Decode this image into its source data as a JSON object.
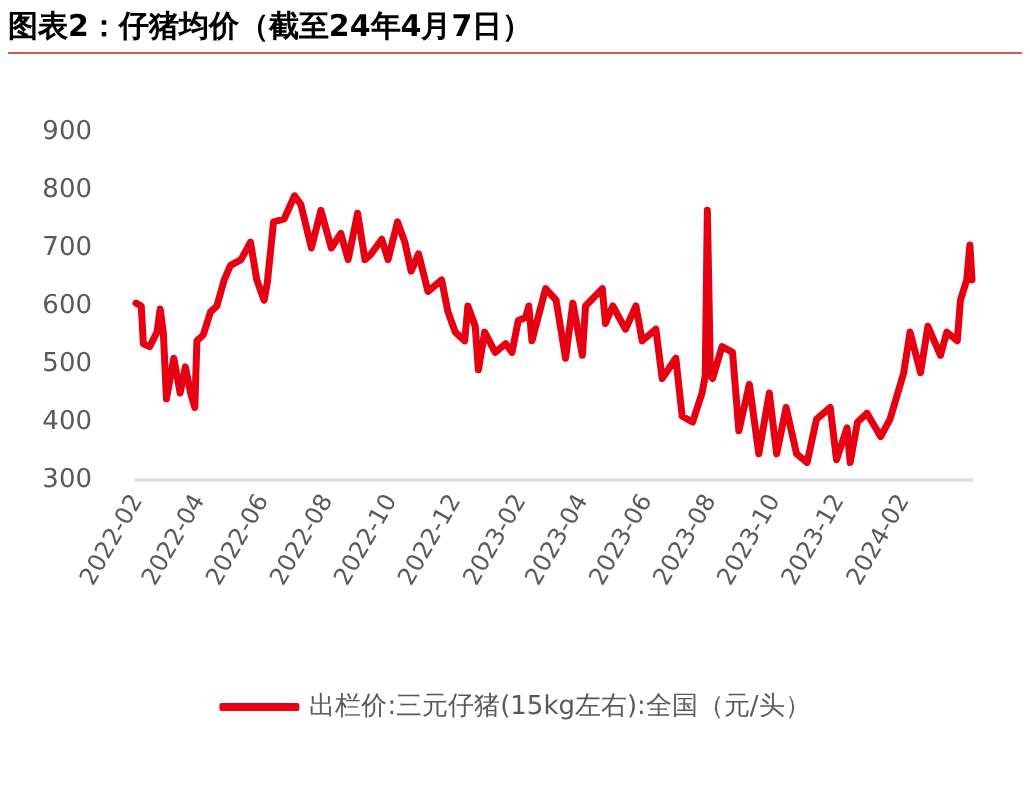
{
  "chart_data": {
    "type": "line",
    "title": "图表2：仔猪均价（截至24年4月7日）",
    "x": [
      "2022-02-01",
      "2022-02-06",
      "2022-02-08",
      "2022-02-14",
      "2022-02-21",
      "2022-02-24",
      "2022-02-27",
      "2022-03-02",
      "2022-03-09",
      "2022-03-15",
      "2022-03-20",
      "2022-03-25",
      "2022-03-29",
      "2022-03-31",
      "2022-04-06",
      "2022-04-13",
      "2022-04-19",
      "2022-04-26",
      "2022-05-02",
      "2022-05-12",
      "2022-05-21",
      "2022-05-27",
      "2022-06-03",
      "2022-06-06",
      "2022-06-12",
      "2022-06-22",
      "2022-07-02",
      "2022-07-08",
      "2022-07-18",
      "2022-07-27",
      "2022-08-06",
      "2022-08-15",
      "2022-08-22",
      "2022-08-31",
      "2022-09-07",
      "2022-09-13",
      "2022-09-23",
      "2022-09-29",
      "2022-10-08",
      "2022-10-15",
      "2022-10-21",
      "2022-10-28",
      "2022-11-06",
      "2022-11-19",
      "2022-11-25",
      "2022-12-02",
      "2022-12-11",
      "2022-12-14",
      "2022-12-21",
      "2022-12-24",
      "2022-12-30",
      "2023-01-09",
      "2023-01-19",
      "2023-01-25",
      "2023-01-31",
      "2023-02-07",
      "2023-02-10",
      "2023-02-13",
      "2023-02-26",
      "2023-03-08",
      "2023-03-17",
      "2023-03-24",
      "2023-04-02",
      "2023-04-05",
      "2023-04-21",
      "2023-04-24",
      "2023-05-01",
      "2023-05-13",
      "2023-05-23",
      "2023-05-29",
      "2023-06-11",
      "2023-06-17",
      "2023-06-30",
      "2023-07-06",
      "2023-07-16",
      "2023-07-25",
      "2023-07-28",
      "2023-07-30",
      "2023-08-02",
      "2023-08-04",
      "2023-08-13",
      "2023-08-23",
      "2023-08-29",
      "2023-09-08",
      "2023-09-17",
      "2023-09-27",
      "2023-10-04",
      "2023-10-13",
      "2023-10-23",
      "2023-11-02",
      "2023-11-11",
      "2023-11-24",
      "2023-11-30",
      "2023-12-10",
      "2023-12-13",
      "2023-12-20",
      "2023-12-29",
      "2024-01-11",
      "2024-01-20",
      "2024-02-02",
      "2024-02-08",
      "2024-02-18",
      "2024-02-25",
      "2024-03-08",
      "2024-03-14",
      "2024-03-24",
      "2024-03-27",
      "2024-04-02",
      "2024-04-05",
      "2024-04-07"
    ],
    "series": [
      {
        "name": "出栏价:三元仔猪(15kg左右):全国（元/头）",
        "color": "#e60012",
        "values": [
          605,
          600,
          535,
          530,
          555,
          595,
          555,
          440,
          510,
          450,
          495,
          450,
          425,
          540,
          550,
          590,
          600,
          645,
          670,
          680,
          710,
          645,
          610,
          640,
          745,
          750,
          790,
          775,
          700,
          765,
          700,
          725,
          680,
          760,
          680,
          690,
          715,
          680,
          745,
          710,
          660,
          690,
          625,
          645,
          590,
          555,
          540,
          600,
          565,
          490,
          555,
          520,
          535,
          520,
          575,
          580,
          600,
          540,
          630,
          610,
          510,
          605,
          515,
          600,
          630,
          570,
          600,
          560,
          600,
          540,
          560,
          475,
          510,
          410,
          400,
          450,
          480,
          765,
          480,
          475,
          530,
          520,
          385,
          465,
          345,
          450,
          345,
          425,
          345,
          330,
          405,
          425,
          335,
          390,
          330,
          400,
          415,
          375,
          405,
          485,
          555,
          485,
          565,
          515,
          555,
          540,
          610,
          645,
          705,
          645
        ]
      }
    ],
    "xlim": [
      "2022-02-01",
      "2024-04-07"
    ],
    "xticks": [
      {
        "value": "2022-02-01",
        "label": "2022-02"
      },
      {
        "value": "2022-04-01",
        "label": "2022-04"
      },
      {
        "value": "2022-06-01",
        "label": "2022-06"
      },
      {
        "value": "2022-08-01",
        "label": "2022-08"
      },
      {
        "value": "2022-10-01",
        "label": "2022-10"
      },
      {
        "value": "2022-12-01",
        "label": "2022-12"
      },
      {
        "value": "2023-02-01",
        "label": "2023-02"
      },
      {
        "value": "2023-04-01",
        "label": "2023-04"
      },
      {
        "value": "2023-06-01",
        "label": "2023-06"
      },
      {
        "value": "2023-08-01",
        "label": "2023-08"
      },
      {
        "value": "2023-10-01",
        "label": "2023-10"
      },
      {
        "value": "2023-12-01",
        "label": "2023-12"
      },
      {
        "value": "2024-02-01",
        "label": "2024-02"
      }
    ],
    "ylim": [
      300,
      900
    ],
    "yticks": [
      300,
      400,
      500,
      600,
      700,
      800,
      900
    ],
    "grid": false,
    "legend": "bottom",
    "marker": "none",
    "line_style": "solid"
  }
}
